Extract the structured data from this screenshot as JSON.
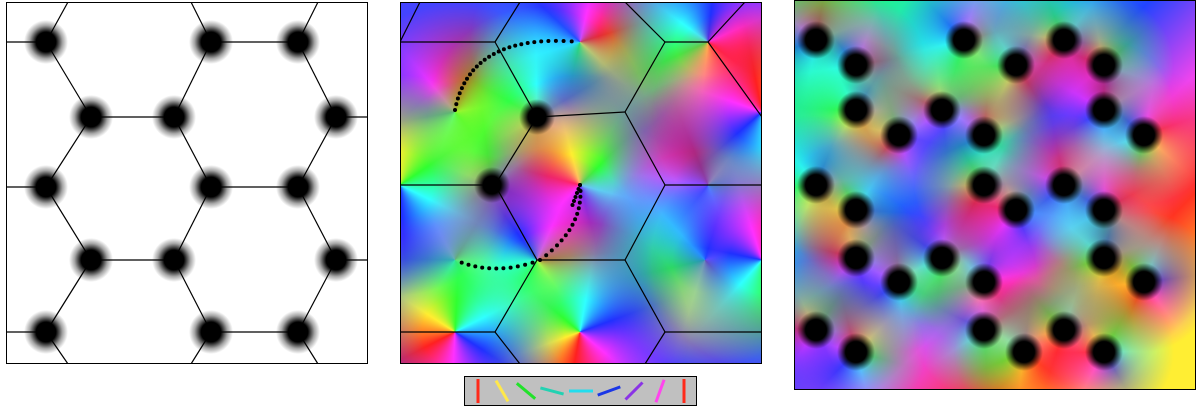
{
  "panels": {
    "left": {
      "kind": "vortex-lattice-density",
      "background": "#ffffff",
      "vortex_color": "#000000",
      "lattice_color": "#000000"
    },
    "middle": {
      "kind": "vortex-lattice-phase",
      "lattice_color": "#000000",
      "dotted_path_color": "#000000"
    },
    "right": {
      "kind": "disordered-vortex-phase",
      "vortex_color": "#000000"
    }
  },
  "legend": {
    "background": "#c0c0c0",
    "border": "#000000",
    "bar_colors": [
      "#ff2a1a",
      "#ffe84a",
      "#22e22a",
      "#22d2b2",
      "#22ddee",
      "#1a36e6",
      "#8a33e6",
      "#ff44ee",
      "#ff2a1a"
    ]
  }
}
